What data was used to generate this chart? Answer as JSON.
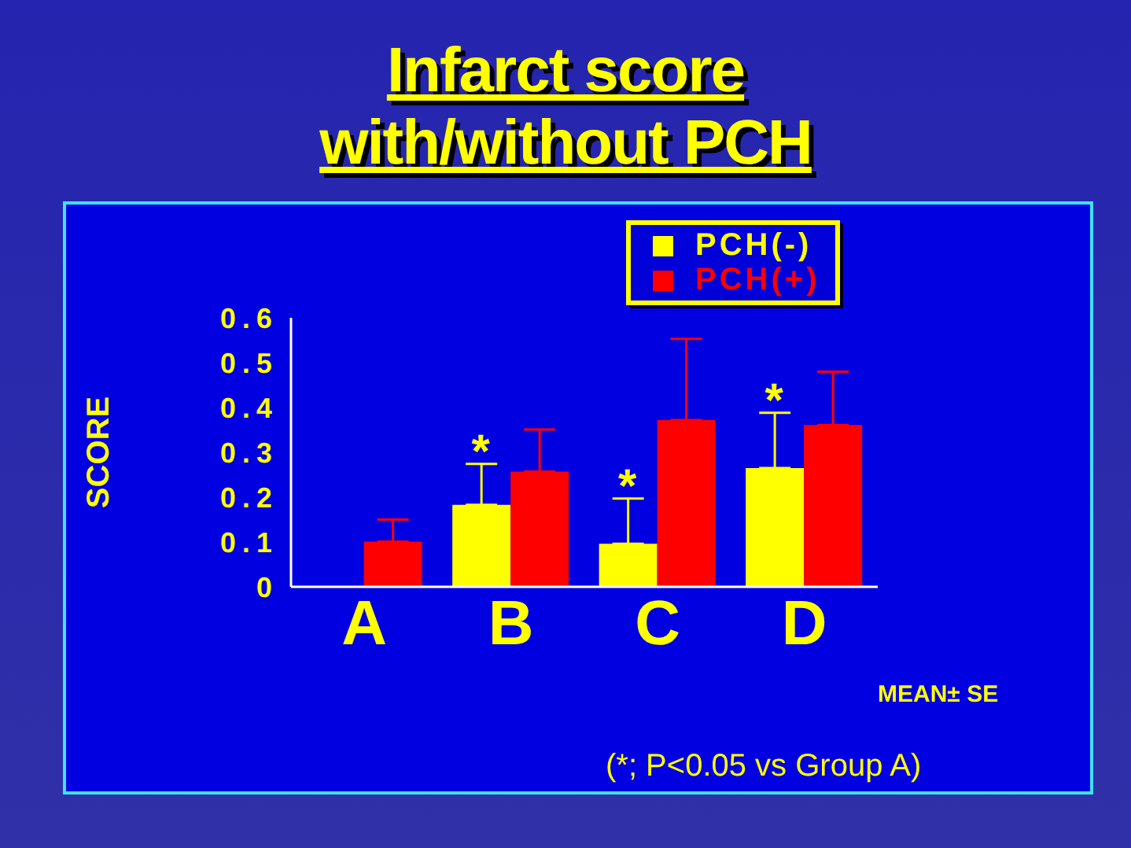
{
  "chart_data": {
    "type": "bar",
    "title": "Infarct score\nwith/without PCH",
    "ylabel": "SCORE",
    "categories": [
      "A",
      "B",
      "C",
      "D"
    ],
    "series": [
      {
        "name": "PCH(-)",
        "color": "#ffff00",
        "values": [
          null,
          0.183,
          0.096,
          0.265
        ],
        "errors": [
          null,
          [
            0.183,
            0.274
          ],
          [
            0.096,
            0.197
          ],
          [
            0.265,
            0.388
          ]
        ]
      },
      {
        "name": "PCH(+)",
        "color": "#ff0000",
        "values": [
          0.101,
          0.257,
          0.372,
          0.361
        ],
        "errors": [
          [
            0.101,
            0.15
          ],
          [
            0.257,
            0.351
          ],
          [
            0.372,
            0.553
          ],
          [
            0.361,
            0.48
          ]
        ]
      }
    ],
    "ylim": [
      0,
      0.6
    ],
    "yticks": [
      0,
      0.1,
      0.2,
      0.3,
      0.4,
      0.5,
      0.6
    ],
    "legend": "top right",
    "annotations": [
      {
        "text": "*",
        "x": "B",
        "y": 0.183
      },
      {
        "text": "*",
        "x": "C",
        "y": 0.096
      },
      {
        "text": "*",
        "x": "D",
        "y": 0.265
      },
      "MEAN± SE",
      "(*; P<0.05 vs Group A)"
    ]
  }
}
